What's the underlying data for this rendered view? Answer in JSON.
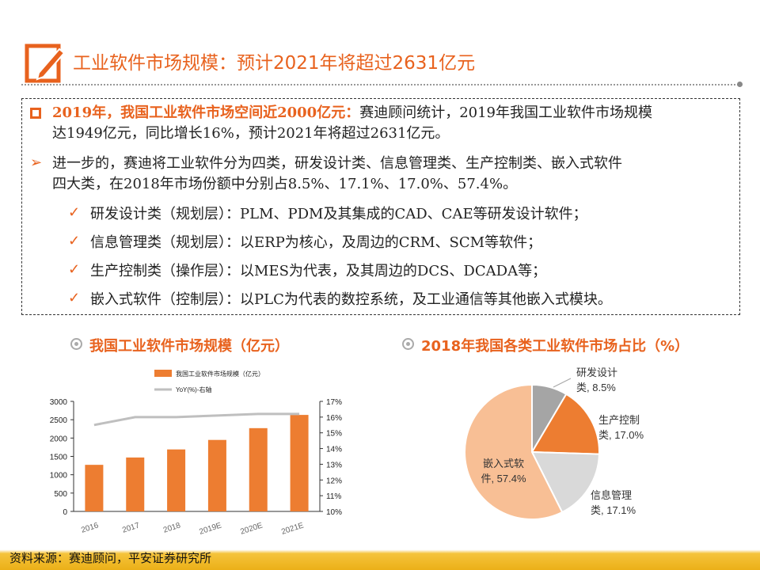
{
  "header": {
    "title": "工业软件市场规模：预计2021年将超过2631亿元",
    "icon": "pencil-edit-icon"
  },
  "body": {
    "p1_highlight": "2019年，我国工业软件市场空间近2000亿元：",
    "p1_rest": "赛迪顾问统计，2019年我国工业软件市场规模",
    "p1_line2": "达1949亿元，同比增长16%，预计2021年将超过2631亿元。",
    "p2_line1": "进一步的，赛迪将工业软件分为四类，研发设计类、信息管理类、生产控制类、嵌入式软件",
    "p2_line2": "四大类，在2018年市场份额中分别占8.5%、17.1%、17.0%、57.4%。",
    "checks": [
      "研发设计类（规划层）：PLM、PDM及其集成的CAD、CAE等研发设计软件；",
      "信息管理类（规划层）：以ERP为核心，及周边的CRM、SCM等软件；",
      "生产控制类（操作层）：以MES为代表，及其周边的DCS、DCADA等；",
      "嵌入式软件（控制层）：以PLC为代表的数控系统，及工业通信等其他嵌入式模块。"
    ]
  },
  "sections": {
    "left_title": "我国工业软件市场规模（亿元）",
    "right_title": "2018年我国各类工业软件市场占比（%）"
  },
  "chart_data": [
    {
      "type": "bar",
      "categories": [
        "2016",
        "2017",
        "2018",
        "2019E",
        "2020E",
        "2021E"
      ],
      "series": [
        {
          "name": "我国工业软件市场规模（亿元）",
          "type": "bar",
          "axis": "left",
          "color": "#ED7D31",
          "values": [
            1270,
            1470,
            1690,
            1949,
            2270,
            2631
          ]
        },
        {
          "name": "YoY(%)-右轴",
          "type": "line",
          "axis": "right",
          "color": "#BFBFBF",
          "values": [
            15.5,
            16.0,
            16.0,
            16.1,
            16.2,
            16.2
          ]
        }
      ],
      "ylim": [
        0,
        3000
      ],
      "yticks": [
        "0",
        "500",
        "1000",
        "1500",
        "2000",
        "2500",
        "3000"
      ],
      "y2lim": [
        10,
        17
      ],
      "y2ticks": [
        "10%",
        "11%",
        "12%",
        "13%",
        "14%",
        "15%",
        "16%",
        "17%"
      ],
      "legend": "top"
    },
    {
      "type": "pie",
      "slices": [
        {
          "label": "研发设计类",
          "value": 8.5,
          "text": [
            "研发设计",
            "类, 8.5%"
          ],
          "color": "#A5A5A5"
        },
        {
          "label": "生产控制类",
          "value": 17.0,
          "text": [
            "生产控制",
            "类, 17.0%"
          ],
          "color": "#ED7D31"
        },
        {
          "label": "信息管理类",
          "value": 17.1,
          "text": [
            "信息管理",
            "类, 17.1%"
          ],
          "color": "#D9D9D9"
        },
        {
          "label": "嵌入式软件",
          "value": 57.4,
          "text": [
            "嵌入式软",
            "件, 57.4%"
          ],
          "color": "#F8BF95"
        }
      ]
    }
  ],
  "footer": {
    "source": "资料来源：赛迪顾问，平安证券研究所"
  }
}
